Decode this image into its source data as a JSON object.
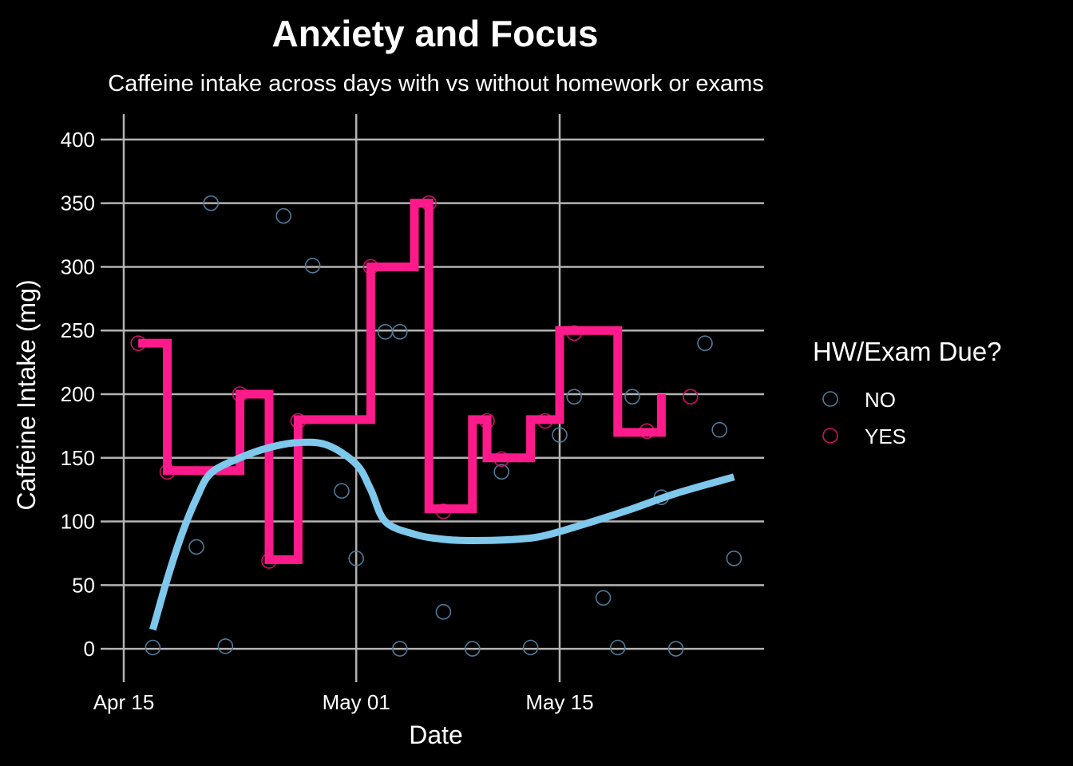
{
  "chart_data": {
    "type": "scatter",
    "title": "Anxiety and Focus",
    "subtitle": "Caffeine intake across days with vs without homework or exams",
    "xlabel": "Date",
    "ylabel": "Caffeine Intake (mg)",
    "x_ticks": [
      "2025-04-15",
      "2025-05-01",
      "2025-05-15"
    ],
    "x_tick_labels": [
      "Apr 15",
      "May 01",
      "May 15"
    ],
    "xlim": [
      "2025-04-15",
      "2025-05-30"
    ],
    "ylim": [
      -20,
      420
    ],
    "y_ticks": [
      0,
      50,
      100,
      150,
      200,
      250,
      300,
      350,
      400
    ],
    "grid": true,
    "legend": {
      "title": "HW/Exam Due?",
      "position": "right",
      "entries": [
        "NO",
        "YES"
      ]
    },
    "colors": {
      "background": "#000000",
      "grid": "#b3b3b3",
      "no_points": "#4f7a99",
      "yes_points": "#cc1166",
      "yes_step": "#ff1a8c",
      "smooth": "#7ec8ec"
    },
    "series": [
      {
        "name": "NO",
        "mark": "hollow-circle",
        "points": [
          [
            "2025-04-17",
            1
          ],
          [
            "2025-04-20",
            80
          ],
          [
            "2025-04-21",
            350
          ],
          [
            "2025-04-22",
            2
          ],
          [
            "2025-04-26",
            340
          ],
          [
            "2025-04-28",
            301
          ],
          [
            "2025-04-30",
            124
          ],
          [
            "2025-05-01",
            71
          ],
          [
            "2025-05-03",
            249
          ],
          [
            "2025-05-04",
            0
          ],
          [
            "2025-05-04",
            249
          ],
          [
            "2025-05-07",
            29
          ],
          [
            "2025-05-09",
            0
          ],
          [
            "2025-05-11",
            139
          ],
          [
            "2025-05-13",
            1
          ],
          [
            "2025-05-15",
            168
          ],
          [
            "2025-05-16",
            198
          ],
          [
            "2025-05-18",
            40
          ],
          [
            "2025-05-19",
            1
          ],
          [
            "2025-05-20",
            198
          ],
          [
            "2025-05-22",
            119
          ],
          [
            "2025-05-23",
            0
          ],
          [
            "2025-05-25",
            240
          ],
          [
            "2025-05-26",
            172
          ],
          [
            "2025-05-27",
            71
          ]
        ]
      },
      {
        "name": "YES",
        "mark": "hollow-circle",
        "points": [
          [
            "2025-04-16",
            240
          ],
          [
            "2025-04-18",
            139
          ],
          [
            "2025-04-23",
            200
          ],
          [
            "2025-04-25",
            69
          ],
          [
            "2025-04-27",
            179
          ],
          [
            "2025-05-02",
            300
          ],
          [
            "2025-05-06",
            350
          ],
          [
            "2025-05-07",
            108
          ],
          [
            "2025-05-10",
            179
          ],
          [
            "2025-05-11",
            149
          ],
          [
            "2025-05-14",
            179
          ],
          [
            "2025-05-16",
            248
          ],
          [
            "2025-05-21",
            171
          ],
          [
            "2025-05-24",
            198
          ]
        ]
      },
      {
        "name": "YES",
        "mark": "step-line",
        "points": [
          [
            "2025-04-16",
            240
          ],
          [
            "2025-04-18",
            140
          ],
          [
            "2025-04-23",
            200
          ],
          [
            "2025-04-25",
            70
          ],
          [
            "2025-04-27",
            180
          ],
          [
            "2025-05-02",
            300
          ],
          [
            "2025-05-05",
            350
          ],
          [
            "2025-05-06",
            110
          ],
          [
            "2025-05-09",
            180
          ],
          [
            "2025-05-10",
            150
          ],
          [
            "2025-05-13",
            180
          ],
          [
            "2025-05-15",
            250
          ],
          [
            "2025-05-19",
            170
          ],
          [
            "2025-05-22",
            200
          ]
        ]
      },
      {
        "name": "NO",
        "mark": "smooth-line",
        "points": [
          [
            "2025-04-17",
            15
          ],
          [
            "2025-04-18",
            55
          ],
          [
            "2025-04-19",
            90
          ],
          [
            "2025-04-20",
            118
          ],
          [
            "2025-04-21",
            138
          ],
          [
            "2025-04-23",
            150
          ],
          [
            "2025-04-25",
            158
          ],
          [
            "2025-04-27",
            162
          ],
          [
            "2025-04-29",
            160
          ],
          [
            "2025-05-01",
            145
          ],
          [
            "2025-05-02",
            125
          ],
          [
            "2025-05-03",
            100
          ],
          [
            "2025-05-05",
            90
          ],
          [
            "2025-05-07",
            86
          ],
          [
            "2025-05-09",
            85
          ],
          [
            "2025-05-12",
            86
          ],
          [
            "2025-05-14",
            89
          ],
          [
            "2025-05-17",
            99
          ],
          [
            "2025-05-20",
            110
          ],
          [
            "2025-05-23",
            122
          ],
          [
            "2025-05-27",
            135
          ]
        ]
      }
    ]
  }
}
